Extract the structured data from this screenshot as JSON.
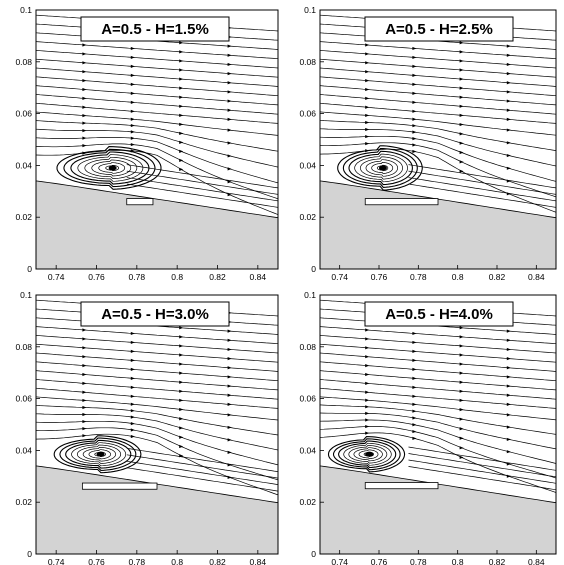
{
  "figure": {
    "panels": [
      {
        "title": "A=0.5 - H=1.5%",
        "core": [
          0.768,
          0.039
        ],
        "rx": 0.024,
        "ry": 0.0075,
        "flap_offset": 0.0,
        "low_offset": 0.003
      },
      {
        "title": "A=0.5 - H=2.5%",
        "core": [
          0.762,
          0.039
        ],
        "rx": 0.02,
        "ry": 0.0078,
        "flap_offset": 0.0,
        "low_offset": 0.002
      },
      {
        "title": "A=0.5 - H=3.0%",
        "core": [
          0.762,
          0.0385
        ],
        "rx": 0.02,
        "ry": 0.0065,
        "flap_offset": 0.001,
        "low_offset": 0.001
      },
      {
        "title": "A=0.5 - H=4.0%",
        "core": [
          0.755,
          0.0385
        ],
        "rx": 0.018,
        "ry": 0.0062,
        "flap_offset": 0.002,
        "low_offset": 0.0
      }
    ],
    "x_ticks": [
      "0.74",
      "0.76",
      "0.78",
      "0.8",
      "0.82",
      "0.84"
    ],
    "y_ticks": [
      "0",
      "0.02",
      "0.04",
      "0.06",
      "0.08",
      "0.1"
    ],
    "x_range": [
      0.73,
      0.85
    ],
    "y_range": [
      0,
      0.1
    ],
    "colors": {
      "solid_fill": "#d3d3d3",
      "stroke": "#000000",
      "background": "#ffffff"
    }
  }
}
